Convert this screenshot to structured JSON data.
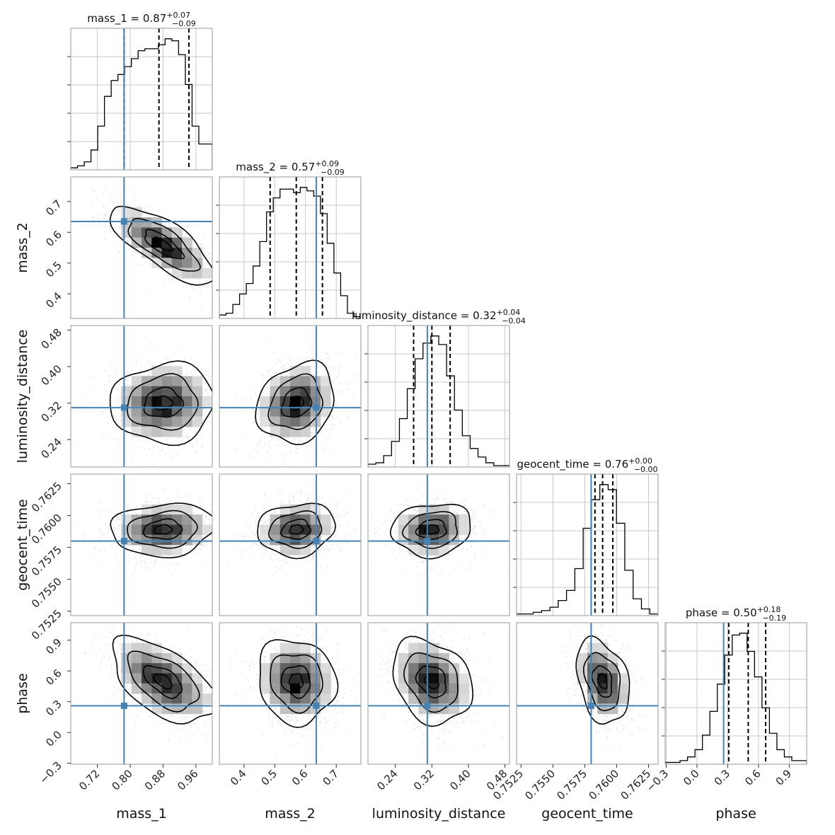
{
  "chart_data": {
    "type": "corner",
    "parameters": [
      "mass_1",
      "mass_2",
      "luminosity_distance",
      "geocent_time",
      "phase"
    ],
    "axis_labels": [
      "mass_1",
      "mass_2",
      "luminosity_distance",
      "geocent_time",
      "phase"
    ],
    "ranges": [
      [
        0.655,
        1.0
      ],
      [
        0.32,
        0.78
      ],
      [
        0.18,
        0.49
      ],
      [
        0.75215,
        0.76325
      ],
      [
        -0.31,
        1.07
      ]
    ],
    "ticks": [
      [
        "0.72",
        "0.80",
        "0.88",
        "0.96"
      ],
      [
        "0.4",
        "0.5",
        "0.6",
        "0.7"
      ],
      [
        "0.24",
        "0.32",
        "0.40",
        "0.48"
      ],
      [
        "0.7525",
        "0.7550",
        "0.7575",
        "0.7600",
        "0.7625"
      ],
      [
        "−0.3",
        "0.0",
        "0.3",
        "0.6",
        "0.9"
      ]
    ],
    "tick_values": [
      [
        0.72,
        0.8,
        0.88,
        0.96
      ],
      [
        0.4,
        0.5,
        0.6,
        0.7
      ],
      [
        0.24,
        0.32,
        0.4,
        0.48
      ],
      [
        0.7525,
        0.755,
        0.7575,
        0.76,
        0.7625
      ],
      [
        -0.3,
        0.0,
        0.3,
        0.6,
        0.9
      ]
    ],
    "truths": [
      0.785,
      0.635,
      0.31,
      0.758,
      0.26
    ],
    "truth_color": "#4682b4",
    "titles": [
      {
        "name": "mass_1",
        "median": "0.87",
        "plus": "+0.07",
        "minus": "−0.09"
      },
      {
        "name": "mass_2",
        "median": "0.57",
        "plus": "+0.09",
        "minus": "−0.09"
      },
      {
        "name": "luminosity_distance",
        "median": "0.32",
        "plus": "+0.04",
        "minus": "−0.04"
      },
      {
        "name": "geocent_time",
        "median": "0.76",
        "plus": "+0.00",
        "minus": "−0.00"
      },
      {
        "name": "phase",
        "median": "0.50",
        "plus": "+0.18",
        "minus": "−0.19"
      }
    ],
    "quantiles": [
      [
        0.785,
        0.87,
        0.943
      ],
      [
        0.485,
        0.57,
        0.655
      ],
      [
        0.28,
        0.32,
        0.36
      ],
      [
        0.7583,
        0.7589,
        0.7597
      ],
      [
        0.31,
        0.5,
        0.67
      ]
    ],
    "histograms": [
      {
        "edges_min": 0.655,
        "edges_max": 1.0,
        "counts": [
          1,
          2,
          4,
          10,
          22,
          37,
          45,
          48,
          52,
          56,
          60,
          61,
          61,
          63,
          66,
          65,
          58,
          43,
          22,
          13,
          13
        ]
      },
      {
        "edges_min": 0.32,
        "edges_max": 0.78,
        "counts": [
          2,
          3,
          8,
          14,
          20,
          30,
          44,
          61,
          69,
          74,
          74,
          72,
          75,
          73,
          70,
          60,
          43,
          26,
          13,
          3,
          1
        ]
      },
      {
        "edges_min": 0.18,
        "edges_max": 0.49,
        "counts": [
          2,
          3,
          8,
          18,
          34,
          55,
          76,
          87,
          92,
          86,
          64,
          40,
          22,
          13,
          7,
          3,
          1,
          1
        ]
      },
      {
        "edges_min": 0.75215,
        "edges_max": 0.76325,
        "counts": [
          1,
          1,
          2,
          3,
          5,
          9,
          15,
          28,
          52,
          69,
          78,
          75,
          55,
          27,
          10,
          4,
          1
        ]
      },
      {
        "edges_min": -0.31,
        "edges_max": 1.07,
        "counts": [
          1,
          1,
          2,
          4,
          8,
          16,
          29,
          44,
          60,
          71,
          72,
          62,
          48,
          31,
          17,
          8,
          4,
          2,
          2
        ]
      }
    ],
    "joint": [
      {
        "row": 1,
        "col": 0,
        "mean": [
          0.88,
          0.56
        ],
        "std": [
          0.055,
          0.055
        ],
        "corr": -0.75
      },
      {
        "row": 2,
        "col": 0,
        "mean": [
          0.88,
          0.32
        ],
        "std": [
          0.055,
          0.038
        ],
        "corr": 0.05
      },
      {
        "row": 2,
        "col": 1,
        "mean": [
          0.57,
          0.32
        ],
        "std": [
          0.055,
          0.038
        ],
        "corr": 0.2
      },
      {
        "row": 3,
        "col": 0,
        "mean": [
          0.88,
          0.7589
        ],
        "std": [
          0.055,
          0.0009
        ],
        "corr": 0.1
      },
      {
        "row": 3,
        "col": 1,
        "mean": [
          0.57,
          0.7589
        ],
        "std": [
          0.055,
          0.0009
        ],
        "corr": 0.12
      },
      {
        "row": 3,
        "col": 2,
        "mean": [
          0.32,
          0.7589
        ],
        "std": [
          0.038,
          0.0009
        ],
        "corr": 0.1
      },
      {
        "row": 4,
        "col": 0,
        "mean": [
          0.88,
          0.5
        ],
        "std": [
          0.055,
          0.18
        ],
        "corr": -0.55
      },
      {
        "row": 4,
        "col": 1,
        "mean": [
          0.57,
          0.5
        ],
        "std": [
          0.055,
          0.18
        ],
        "corr": -0.1
      },
      {
        "row": 4,
        "col": 2,
        "mean": [
          0.32,
          0.5
        ],
        "std": [
          0.038,
          0.18
        ],
        "corr": -0.25
      },
      {
        "row": 4,
        "col": 3,
        "mean": [
          0.7589,
          0.5
        ],
        "std": [
          0.0009,
          0.18
        ],
        "corr": -0.3
      }
    ],
    "contour_levels": [
      0.4,
      0.85,
      1.55,
      2.3
    ],
    "grid": true
  }
}
